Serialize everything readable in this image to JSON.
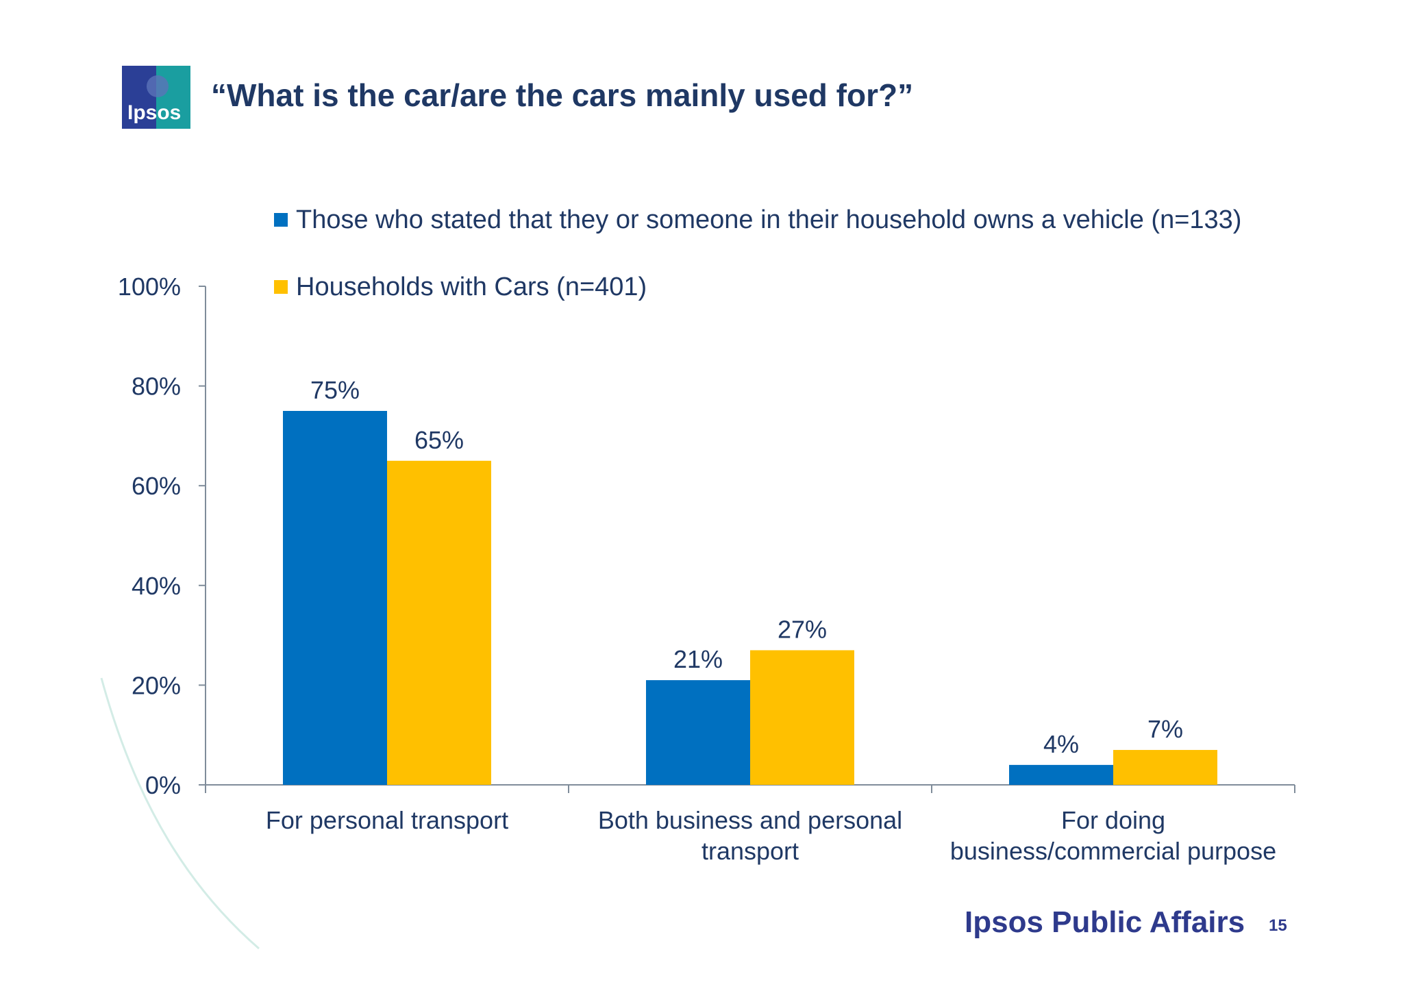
{
  "header": {
    "title": "“What is the car/are the cars mainly used for?”",
    "logo_text": "Ipsos"
  },
  "colors": {
    "series1": "#0070c0",
    "series2": "#ffc000",
    "text": "#1f3864",
    "axis": "#7f8c9a"
  },
  "chart_data": {
    "type": "bar",
    "categories": [
      [
        "For personal transport"
      ],
      [
        "Both business and personal",
        "transport"
      ],
      [
        "For doing",
        "business/commercial purpose"
      ]
    ],
    "series": [
      {
        "name": "Those who stated that they or someone  in their household owns a vehicle (n=133)",
        "values": [
          75,
          21,
          4
        ],
        "labels": [
          "75%",
          "21%",
          "4%"
        ]
      },
      {
        "name": "Households with Cars (n=401)",
        "values": [
          65,
          27,
          7
        ],
        "labels": [
          "65%",
          "27%",
          "7%"
        ]
      }
    ],
    "yticks": [
      "0%",
      "20%",
      "40%",
      "60%",
      "80%",
      "100%"
    ],
    "ylim": [
      0,
      100
    ],
    "legend": "top",
    "grid": false
  },
  "footer": {
    "brand": "Ipsos Public Affairs",
    "page": "15"
  }
}
